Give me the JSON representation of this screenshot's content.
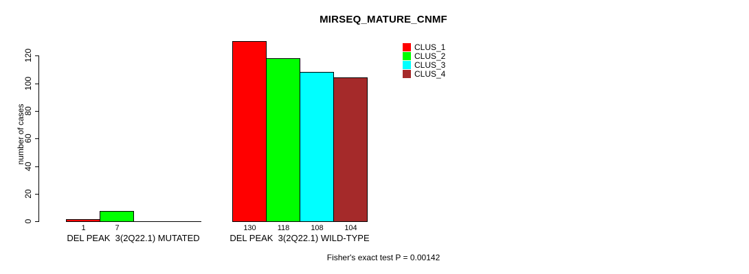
{
  "chart": {
    "title": "MIRSEQ_MATURE_CNMF",
    "ylabel": "number of cases",
    "footnote": "Fisher's exact test P = 0.00142"
  },
  "chart_data": {
    "type": "bar",
    "title": "MIRSEQ_MATURE_CNMF",
    "xlabel": "",
    "ylabel": "number of cases",
    "yticks": [
      0,
      20,
      40,
      60,
      80,
      100,
      120
    ],
    "ylim": [
      0,
      130
    ],
    "grid": false,
    "legend_position": "top-right-inside",
    "background_color": "#ffffff",
    "axis_color": "#000000",
    "categories": [
      "DEL PEAK  3(2Q22.1) MUTATED",
      "DEL PEAK  3(2Q22.1) WILD-TYPE"
    ],
    "series": [
      {
        "name": "CLUS_1",
        "color": "#ff0000",
        "values": [
          1,
          130
        ]
      },
      {
        "name": "CLUS_2",
        "color": "#00ff00",
        "values": [
          7,
          118
        ]
      },
      {
        "name": "CLUS_3",
        "color": "#00ffff",
        "values": [
          0,
          108
        ]
      },
      {
        "name": "CLUS_4",
        "color": "#a52a2a",
        "values": [
          0,
          104
        ]
      }
    ],
    "bar_value_labels": [
      [
        "1",
        "7",
        "",
        ""
      ],
      [
        "130",
        "118",
        "108",
        "104"
      ]
    ],
    "annotation": "Fisher's exact test P = 0.00142"
  }
}
